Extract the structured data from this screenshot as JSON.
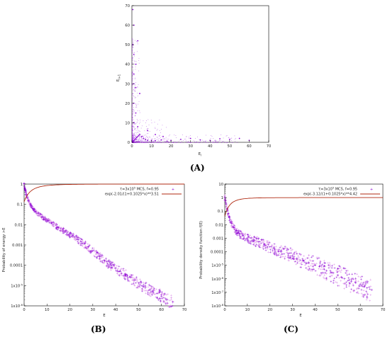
{
  "panel_labels": {
    "a": "(A)",
    "b": "(B)",
    "c": "(C)"
  },
  "colors": {
    "points": "#8a00d4",
    "points_light": "#d98be6",
    "fit": "#b02a12",
    "axes": "#000000"
  },
  "chart_data": [
    {
      "panel": "A",
      "type": "scatter",
      "xlabel": "E_i",
      "ylabel": "E_i+1",
      "xlim": [
        0,
        70
      ],
      "ylim": [
        0,
        70
      ],
      "xticks": [
        "0",
        "10",
        "20",
        "30",
        "40",
        "50",
        "60",
        "70"
      ],
      "yticks": [
        "0",
        "10",
        "20",
        "30",
        "40",
        "50",
        "60",
        "70"
      ],
      "series": [
        {
          "x": [
            0.5,
            1,
            1.5,
            2,
            2.5,
            3,
            3.5,
            4,
            5,
            6,
            7,
            8,
            10,
            12,
            15,
            18,
            20,
            25,
            30,
            35,
            40,
            45,
            50,
            55,
            60,
            1,
            1,
            1,
            2,
            2,
            3,
            0.5,
            1,
            4,
            1,
            2,
            3,
            1,
            0.5,
            8,
            12,
            16
          ],
          "y": [
            0.5,
            1,
            1.5,
            2,
            2.5,
            3,
            3.5,
            4,
            3,
            2,
            1.5,
            1,
            1,
            0.8,
            1.2,
            0.6,
            1,
            1.5,
            2,
            1.2,
            1,
            1.8,
            1.5,
            2,
            1,
            10,
            20,
            30,
            40,
            15,
            8,
            50,
            35,
            25,
            60,
            28,
            52,
            45,
            68,
            6,
            4,
            3
          ]
        }
      ]
    },
    {
      "panel": "B",
      "type": "scatter",
      "xlabel": "E",
      "ylabel": "Probability of energy >E",
      "xlim": [
        0,
        70
      ],
      "ylog": true,
      "ylim_exp": [
        -6,
        0
      ],
      "xticks": [
        "0",
        "10",
        "20",
        "30",
        "40",
        "50",
        "60",
        "70"
      ],
      "yticks": [
        "1x10^-6",
        "1x10^-5",
        "0.0001",
        "0.001",
        "0.01",
        "0.1",
        "1"
      ],
      "legend": [
        "τ=3x10^5 MCS, f=0.95",
        "exp(-2.01/(1+0.1025*x)**3.51"
      ],
      "legend_position": "top-right",
      "series": [
        {
          "name": "τ=3x10^5 MCS, f=0.95",
          "x": [
            0,
            0.5,
            1,
            1.5,
            2,
            3,
            4,
            5,
            6,
            8,
            10,
            12,
            15,
            18,
            20,
            22,
            25,
            28,
            30,
            33,
            35,
            38,
            40,
            42,
            45,
            48,
            50,
            52,
            53,
            55,
            56,
            58,
            60,
            62,
            65
          ],
          "y": [
            1,
            0.5,
            0.3,
            0.2,
            0.15,
            0.09,
            0.06,
            0.045,
            0.035,
            0.024,
            0.017,
            0.012,
            0.007,
            0.0045,
            0.0033,
            0.0024,
            0.0014,
            0.0008,
            0.0005,
            0.00027,
            0.00017,
            0.0001,
            7e-05,
            5e-05,
            3e-05,
            1.8e-05,
            1.3e-05,
            9e-06,
            8e-06,
            6e-06,
            5e-06,
            4e-06,
            3e-06,
            2e-06,
            1.5e-06
          ]
        }
      ],
      "fit": {
        "name": "exp(-2.01/(1+0.1025*x)**3.51",
        "a": 2.01,
        "b": 0.1025,
        "n": 3.51
      }
    },
    {
      "panel": "C",
      "type": "scatter",
      "xlabel": "E",
      "ylabel": "Probability density function f(E)",
      "xlim": [
        0,
        70
      ],
      "ylog": true,
      "ylim_exp": [
        -8,
        1
      ],
      "xticks": [
        "0",
        "10",
        "20",
        "30",
        "40",
        "50",
        "60",
        "70"
      ],
      "yticks": [
        "1x10^-8",
        "1x10^-7",
        "1x10^-6",
        "1x10^-5",
        "0.0001",
        "0.001",
        "0.01",
        "0.1",
        "1",
        "10"
      ],
      "legend": [
        "τ=3x10^5 MCS, f=0.95",
        "exp(-3.12/(1+0.1025*x)**4.42"
      ],
      "legend_position": "top-right",
      "series": [
        {
          "name": "τ=3x10^5 MCS, f=0.95",
          "x": [
            0,
            0.5,
            1,
            1.5,
            2,
            3,
            4,
            5,
            6,
            8,
            10,
            12,
            15,
            18,
            20,
            22,
            25,
            28,
            30,
            32,
            35,
            37,
            40,
            42,
            44,
            45,
            47,
            48,
            50,
            52,
            53,
            55,
            56,
            58,
            60,
            62,
            63,
            65
          ],
          "y": [
            1,
            0.4,
            0.15,
            0.06,
            0.03,
            0.012,
            0.006,
            0.0035,
            0.0025,
            0.0015,
            0.001,
            0.0007,
            0.0005,
            0.0003,
            0.00022,
            0.00015,
            0.0001,
            7e-05,
            5e-05,
            3e-05,
            2e-05,
            1.5e-05,
            1e-05,
            8e-06,
            5e-06,
            4e-06,
            3e-06,
            2.5e-06,
            1.8e-06,
            1.2e-06,
            1e-06,
            8e-07,
            6e-07,
            5e-07,
            4e-07,
            3e-07,
            2e-07,
            1.5e-07
          ]
        }
      ],
      "fit": {
        "name": "exp(-3.12/(1+0.1025*x)**4.42",
        "a": 3.12,
        "b": 0.1025,
        "n": 4.42
      }
    }
  ]
}
